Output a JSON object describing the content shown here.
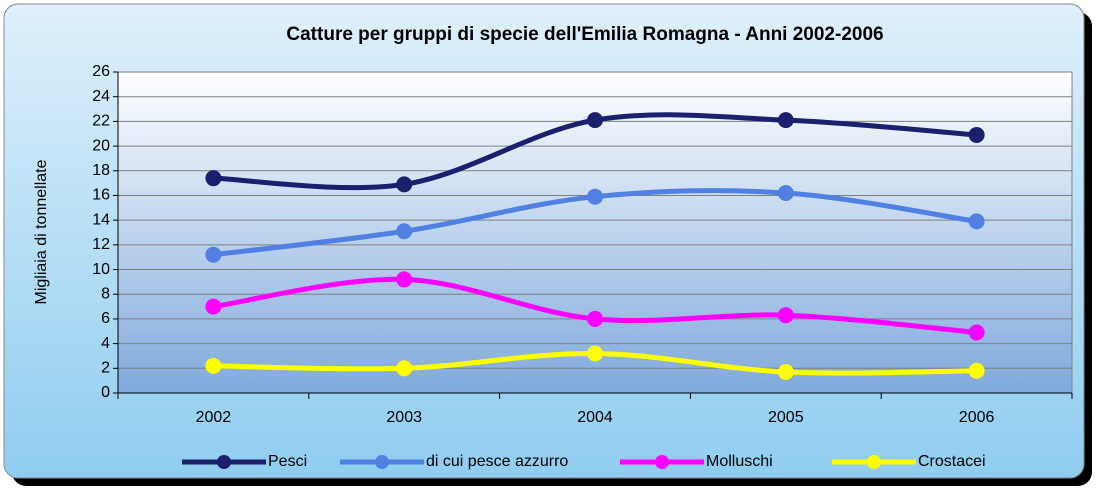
{
  "chart_data": {
    "type": "line",
    "title": "Catture per gruppi di specie dell'Emilia Romagna - Anni 2002-2006",
    "y_label": "Migliaia di tonnellate",
    "categories": [
      "2002",
      "2003",
      "2004",
      "2005",
      "2006"
    ],
    "series": [
      {
        "name": "Pesci",
        "color": "#1b1f6e",
        "values": [
          17.4,
          16.9,
          22.1,
          22.1,
          20.9
        ]
      },
      {
        "name": "di cui pesce azzurro",
        "color": "#4f80e2",
        "values": [
          11.2,
          13.1,
          15.9,
          16.2,
          13.9
        ]
      },
      {
        "name": "Molluschi",
        "color": "#ff00ff",
        "values": [
          7.0,
          9.2,
          6.0,
          6.3,
          4.9
        ]
      },
      {
        "name": "Crostacei",
        "color": "#ffff00",
        "values": [
          2.2,
          2.0,
          3.2,
          1.7,
          1.8
        ]
      }
    ],
    "ylim": [
      0,
      26
    ],
    "yticks": [
      0,
      2,
      4,
      6,
      8,
      10,
      12,
      14,
      16,
      18,
      20,
      22,
      24,
      26
    ],
    "grid": true,
    "smooth": true,
    "legend": "bottom"
  }
}
